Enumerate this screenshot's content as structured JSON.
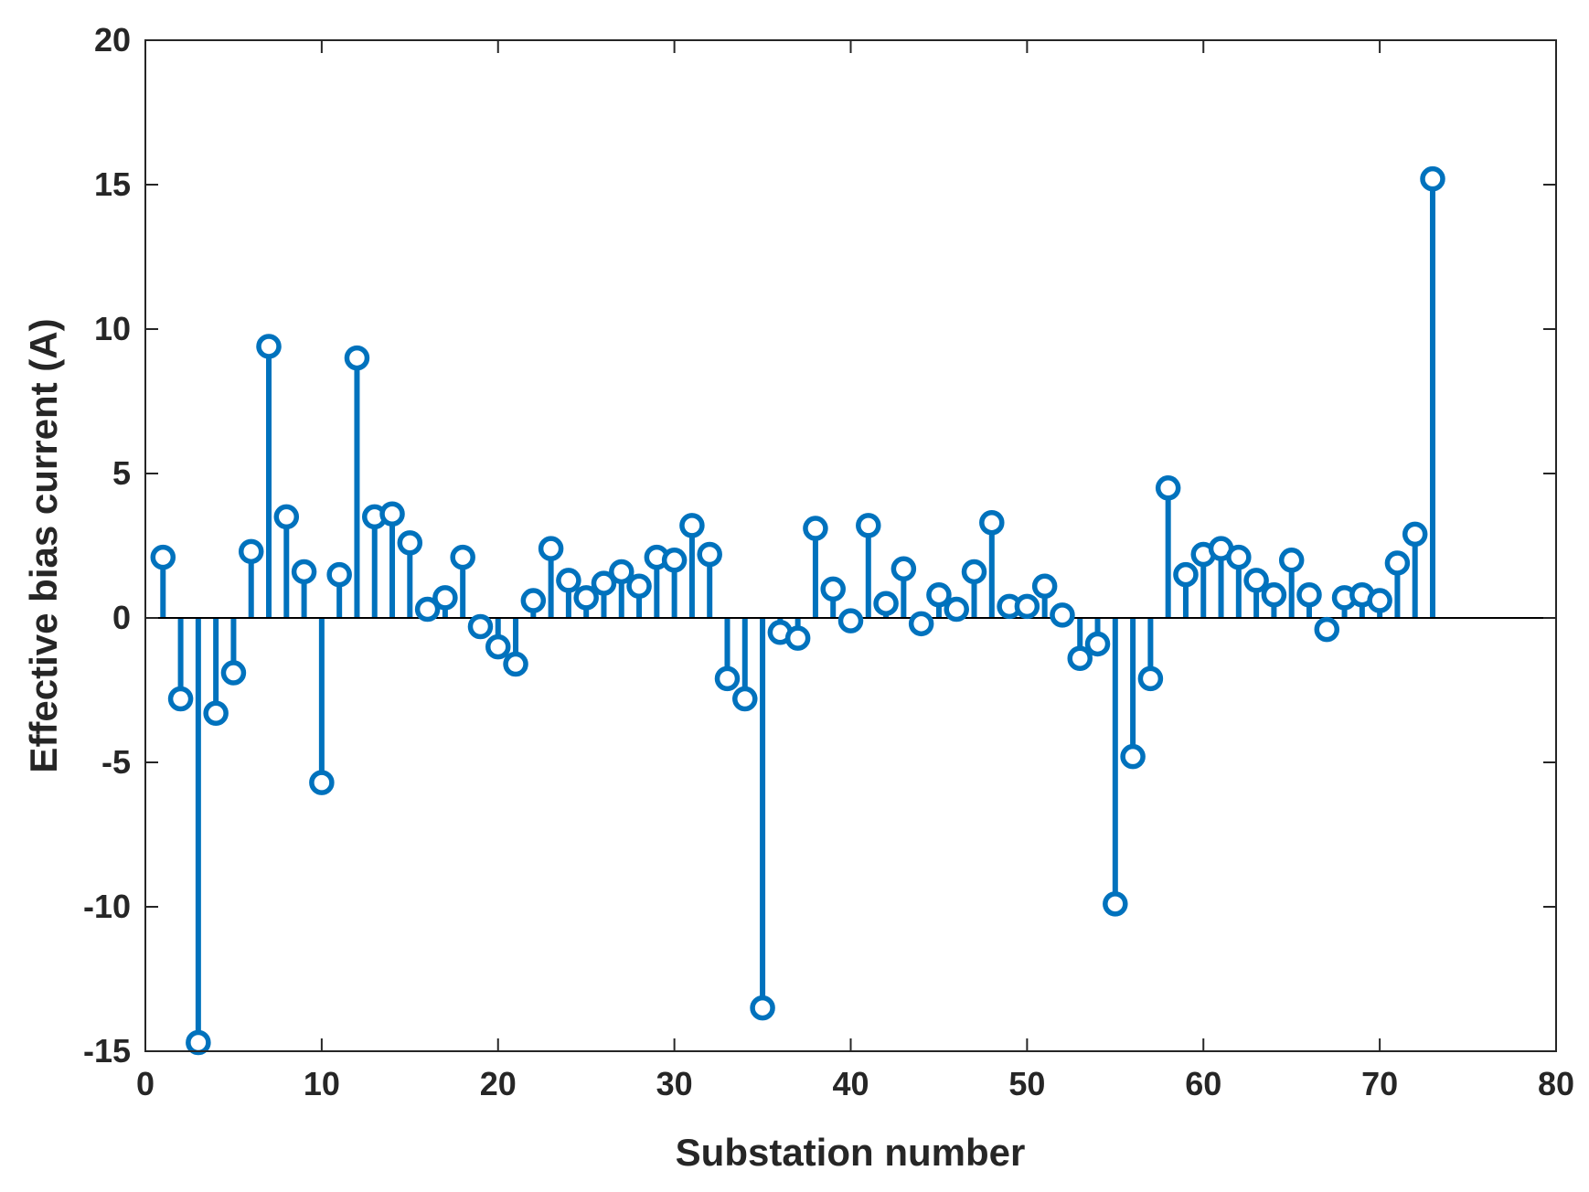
{
  "chart_data": {
    "type": "stem",
    "title": "",
    "xlabel": "Substation number",
    "ylabel": "Effective bias current (A)",
    "xlim": [
      0,
      80
    ],
    "ylim": [
      -15,
      20
    ],
    "xticks": [
      0,
      10,
      20,
      30,
      40,
      50,
      60,
      70,
      80
    ],
    "yticks": [
      -15,
      -10,
      -5,
      0,
      5,
      10,
      15,
      20
    ],
    "grid": false,
    "baseline": 0,
    "series": [
      {
        "name": "Effective bias current",
        "color": "#0072BD",
        "x": [
          1,
          2,
          3,
          4,
          5,
          6,
          7,
          8,
          9,
          10,
          11,
          12,
          13,
          14,
          15,
          16,
          17,
          18,
          19,
          20,
          21,
          22,
          23,
          24,
          25,
          26,
          27,
          28,
          29,
          30,
          31,
          32,
          33,
          34,
          35,
          36,
          37,
          38,
          39,
          40,
          41,
          42,
          43,
          44,
          45,
          46,
          47,
          48,
          49,
          50,
          51,
          52,
          53,
          54,
          55,
          56,
          57,
          58,
          59,
          60,
          61,
          62,
          63,
          64,
          65,
          66,
          67,
          68,
          69,
          70,
          71,
          72,
          73
        ],
        "values": [
          2.1,
          -2.8,
          -14.7,
          -3.3,
          -1.9,
          2.3,
          9.4,
          3.5,
          1.6,
          -5.7,
          1.5,
          9.0,
          3.5,
          3.6,
          2.6,
          0.3,
          0.7,
          2.1,
          -0.3,
          -1.0,
          -1.6,
          0.6,
          2.4,
          1.3,
          0.7,
          1.2,
          1.6,
          1.1,
          2.1,
          2.0,
          3.2,
          2.2,
          -2.1,
          -2.8,
          -13.5,
          -0.5,
          -0.7,
          3.1,
          1.0,
          -0.1,
          3.2,
          0.5,
          1.7,
          -0.2,
          0.8,
          0.3,
          1.6,
          3.3,
          0.4,
          0.4,
          1.1,
          0.1,
          -1.4,
          -0.9,
          -9.9,
          -4.8,
          -2.1,
          4.5,
          1.5,
          2.2,
          2.4,
          2.1,
          1.3,
          0.8,
          2.0,
          0.8,
          -0.4,
          0.7,
          0.8,
          0.6,
          1.9,
          2.9,
          15.2
        ]
      }
    ]
  }
}
